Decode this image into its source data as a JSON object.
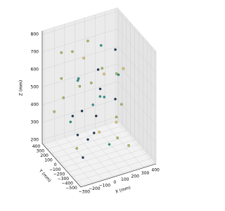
{
  "chart_data": {
    "type": "scatter3d",
    "xlabel": "X (mm)",
    "ylabel": "Y (mm)",
    "zlabel": "Z (mm)",
    "x": [
      -200,
      -120,
      -40,
      60,
      150,
      250,
      -180,
      -80,
      40,
      160,
      260,
      -220,
      -100,
      20,
      140,
      240,
      -200,
      -60,
      80,
      200,
      -180,
      -40,
      100,
      230,
      -250,
      -150,
      -30,
      90,
      200,
      290,
      -230,
      -110,
      20,
      150,
      260,
      -150,
      0,
      150,
      280,
      -60
    ],
    "y": [
      250,
      180,
      100,
      250,
      150,
      50,
      -100,
      -180,
      -50,
      -200,
      -120,
      200,
      80,
      -150,
      100,
      -50,
      -250,
      150,
      -100,
      200,
      250,
      -200,
      50,
      -150,
      300,
      100,
      -250,
      200,
      -100,
      150,
      -200,
      250,
      0,
      -250,
      50,
      -150,
      100,
      -50,
      -200,
      200
    ],
    "z": [
      720,
      730,
      700,
      740,
      725,
      710,
      650,
      640,
      660,
      655,
      645,
      590,
      600,
      580,
      610,
      595,
      520,
      530,
      510,
      540,
      460,
      450,
      470,
      455,
      380,
      390,
      370,
      385,
      375,
      395,
      300,
      310,
      290,
      305,
      295,
      220,
      230,
      215,
      225,
      240
    ],
    "colors": [
      "#a7c957",
      "#a7c957",
      "#e9d758",
      "#a7c957",
      "#2a9d8f",
      "#1d3557",
      "#2a9d8f",
      "#a7c957",
      "#1d3557",
      "#a7c957",
      "#e9d758",
      "#a7c957",
      "#2a9d8f",
      "#1d3557",
      "#a7c957",
      "#2a9d8f",
      "#1d3557",
      "#a7c957",
      "#2a9d8f",
      "#e9d758",
      "#a7c957",
      "#1d3557",
      "#2a9d8f",
      "#a7c957",
      "#a7c957",
      "#1d3557",
      "#e9d758",
      "#2a9d8f",
      "#a7c957",
      "#1d3557",
      "#a7c957",
      "#2a9d8f",
      "#1d3557",
      "#a7c957",
      "#e9d758",
      "#1d3557",
      "#1d3557",
      "#2a9d8f",
      "#a7c957",
      "#1d3557"
    ],
    "xlim": [
      -320,
      420
    ],
    "ylim": [
      -520,
      420
    ],
    "zlim": [
      180,
      820
    ],
    "xticks": [
      {
        "value": -300,
        "label": "−300"
      },
      {
        "value": -200,
        "label": "−200"
      },
      {
        "value": -100,
        "label": "−100"
      },
      0,
      100,
      200,
      300,
      400
    ],
    "yticks": [
      {
        "value": -500,
        "label": "−500"
      },
      {
        "value": -400,
        "label": "−400"
      },
      {
        "value": -300,
        "label": "−300"
      },
      {
        "value": -200,
        "label": "−200"
      },
      {
        "value": -100,
        "label": "−100"
      },
      0,
      100,
      200,
      300,
      400
    ],
    "zticks": [
      200,
      300,
      400,
      500,
      600,
      700,
      800
    ],
    "grid": true
  }
}
